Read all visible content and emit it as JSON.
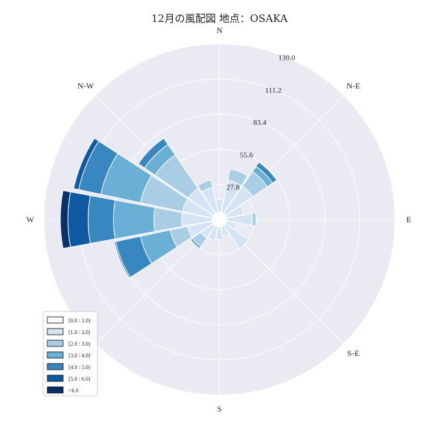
{
  "chart_data": {
    "type": "windrose",
    "title": "12月の風配図 地点：OSAKA",
    "directions": [
      "N",
      "N-E",
      "E",
      "S-E",
      "S",
      "S-W",
      "W",
      "N-W"
    ],
    "sectors": [
      "N",
      "NNE",
      "NE",
      "ENE",
      "E",
      "ESE",
      "SE",
      "SSE",
      "S",
      "SSW",
      "SW",
      "WSW",
      "W",
      "WNW",
      "NW",
      "NNW"
    ],
    "bins": [
      {
        "label": "[0.0 : 1.0)",
        "color": "#f7fbff"
      },
      {
        "label": "[1.0 : 2.0)",
        "color": "#d4e4f4"
      },
      {
        "label": "[2.0 : 3.0)",
        "color": "#a9cde4"
      },
      {
        "label": "[3.0 : 4.0)",
        "color": "#6aafd6"
      },
      {
        "label": "[4.0 : 5.0)",
        "color": "#3887c0"
      },
      {
        "label": "[5.0 : 6.0)",
        "color": "#0e59a2"
      },
      {
        "label": ">6.0",
        "color": "#08306b"
      }
    ],
    "series": [
      {
        "sector": "N",
        "values": [
          6,
          10,
          0,
          0,
          0,
          0,
          0
        ]
      },
      {
        "sector": "NNE",
        "values": [
          6,
          26,
          9,
          0,
          0,
          0,
          0
        ]
      },
      {
        "sector": "NE",
        "values": [
          6,
          26,
          14,
          5,
          4,
          0,
          0
        ]
      },
      {
        "sector": "ENE",
        "values": [
          6,
          14,
          0,
          0,
          0,
          0,
          0
        ]
      },
      {
        "sector": "E",
        "values": [
          6,
          20,
          3,
          0,
          0,
          0,
          0
        ]
      },
      {
        "sector": "ESE",
        "values": [
          6,
          8,
          0,
          0,
          0,
          0,
          0
        ]
      },
      {
        "sector": "SE",
        "values": [
          6,
          22,
          0,
          0,
          0,
          0,
          0
        ]
      },
      {
        "sector": "SSE",
        "values": [
          6,
          8,
          0,
          0,
          0,
          0,
          0
        ]
      },
      {
        "sector": "S",
        "values": [
          6,
          10,
          0,
          0,
          0,
          0,
          0
        ]
      },
      {
        "sector": "SSW",
        "values": [
          6,
          11,
          0,
          0,
          0,
          0,
          0
        ]
      },
      {
        "sector": "SW",
        "values": [
          6,
          12,
          8,
          2,
          0,
          0,
          0
        ]
      },
      {
        "sector": "WSW",
        "values": [
          6,
          20,
          14,
          24,
          20,
          1,
          0
        ]
      },
      {
        "sector": "W",
        "values": [
          6,
          24,
          22,
          32,
          20,
          16,
          6
        ]
      },
      {
        "sector": "WNW",
        "values": [
          6,
          24,
          34,
          32,
          18,
          4,
          0
        ]
      },
      {
        "sector": "NW",
        "values": [
          6,
          24,
          32,
          10,
          6,
          0,
          0
        ]
      },
      {
        "sector": "NNW",
        "values": [
          6,
          20,
          6,
          0,
          0,
          0,
          0
        ]
      }
    ],
    "r_ticks": [
      "27.8",
      "55.6",
      "83.4",
      "111.2",
      "139.0"
    ],
    "r_max": 139.0,
    "legend_position": "lower-left"
  }
}
